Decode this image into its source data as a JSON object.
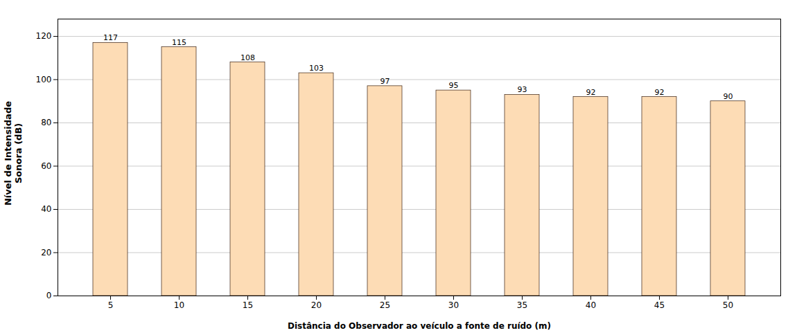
{
  "chart_data": {
    "type": "bar",
    "categories": [
      "5",
      "10",
      "15",
      "20",
      "25",
      "30",
      "35",
      "40",
      "45",
      "50"
    ],
    "values": [
      117,
      115,
      108,
      103,
      97,
      95,
      93,
      92,
      92,
      90
    ],
    "color": "#FDDCB5",
    "xlabel": "Distância do Observador ao veículo a fonte de ruído (m)",
    "ylabel": "Nível de Intensidade\nSonora (dB)",
    "ylim": [
      0,
      128
    ],
    "yticks": [
      0,
      20,
      40,
      60,
      80,
      100,
      120
    ],
    "grid": true,
    "data_labels": true
  }
}
